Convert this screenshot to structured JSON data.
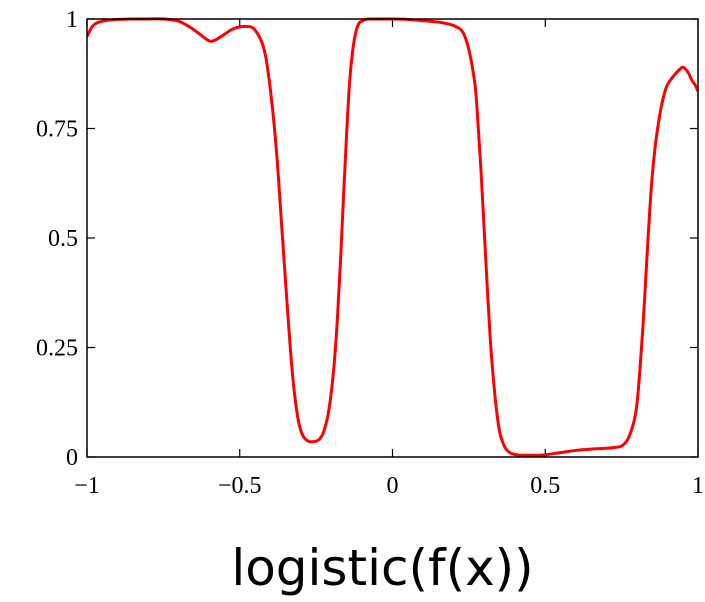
{
  "chart_data": {
    "type": "line",
    "title": "",
    "xlabel": "logistic(f(x))",
    "ylabel": "",
    "xlim": [
      -1,
      1
    ],
    "ylim": [
      0,
      1
    ],
    "xticks": [
      -1,
      -0.5,
      0,
      0.5,
      1
    ],
    "xtick_labels": [
      "−1",
      "−0.5",
      "0",
      "0.5",
      "1"
    ],
    "yticks": [
      0,
      0.25,
      0.5,
      0.75,
      1
    ],
    "ytick_labels": [
      "0",
      "0.25",
      "0.5",
      "0.75",
      "1"
    ],
    "grid": false,
    "legend": "none",
    "series": [
      {
        "color": "#ff0000",
        "x": [
          -1.0,
          -0.98,
          -0.95,
          -0.9,
          -0.85,
          -0.8,
          -0.75,
          -0.7,
          -0.66,
          -0.63,
          -0.6,
          -0.58,
          -0.55,
          -0.52,
          -0.48,
          -0.45,
          -0.42,
          -0.4,
          -0.38,
          -0.36,
          -0.34,
          -0.33,
          -0.32,
          -0.31,
          -0.3,
          -0.29,
          -0.28,
          -0.27,
          -0.26,
          -0.25,
          -0.24,
          -0.23,
          -0.22,
          -0.21,
          -0.2,
          -0.19,
          -0.18,
          -0.17,
          -0.16,
          -0.15,
          -0.14,
          -0.13,
          -0.12,
          -0.11,
          -0.1,
          -0.09,
          -0.08,
          -0.06,
          -0.03,
          0.0,
          0.05,
          0.1,
          0.15,
          0.2,
          0.23,
          0.25,
          0.27,
          0.28,
          0.29,
          0.3,
          0.31,
          0.32,
          0.33,
          0.34,
          0.35,
          0.36,
          0.37,
          0.38,
          0.39,
          0.4,
          0.42,
          0.45,
          0.48,
          0.5,
          0.55,
          0.6,
          0.65,
          0.7,
          0.73,
          0.75,
          0.77,
          0.79,
          0.8,
          0.81,
          0.82,
          0.83,
          0.84,
          0.85,
          0.86,
          0.87,
          0.88,
          0.89,
          0.9,
          0.92,
          0.94,
          0.95,
          0.96,
          0.97,
          0.98,
          0.99,
          1.0
        ],
        "y": [
          0.96,
          0.985,
          0.995,
          0.999,
          1.0,
          1.0,
          1.0,
          0.995,
          0.98,
          0.965,
          0.95,
          0.952,
          0.965,
          0.978,
          0.983,
          0.975,
          0.93,
          0.84,
          0.7,
          0.5,
          0.3,
          0.21,
          0.14,
          0.09,
          0.06,
          0.045,
          0.038,
          0.035,
          0.035,
          0.036,
          0.04,
          0.05,
          0.07,
          0.1,
          0.15,
          0.22,
          0.32,
          0.45,
          0.6,
          0.74,
          0.86,
          0.93,
          0.97,
          0.99,
          0.995,
          0.998,
          1.0,
          1.0,
          1.0,
          1.0,
          0.999,
          0.996,
          0.993,
          0.985,
          0.97,
          0.93,
          0.85,
          0.76,
          0.65,
          0.52,
          0.39,
          0.27,
          0.18,
          0.11,
          0.06,
          0.035,
          0.02,
          0.012,
          0.008,
          0.006,
          0.004,
          0.004,
          0.004,
          0.005,
          0.01,
          0.015,
          0.018,
          0.02,
          0.022,
          0.025,
          0.04,
          0.08,
          0.12,
          0.2,
          0.3,
          0.42,
          0.54,
          0.64,
          0.71,
          0.76,
          0.8,
          0.83,
          0.85,
          0.87,
          0.885,
          0.89,
          0.885,
          0.875,
          0.86,
          0.85,
          0.835
        ]
      }
    ]
  }
}
